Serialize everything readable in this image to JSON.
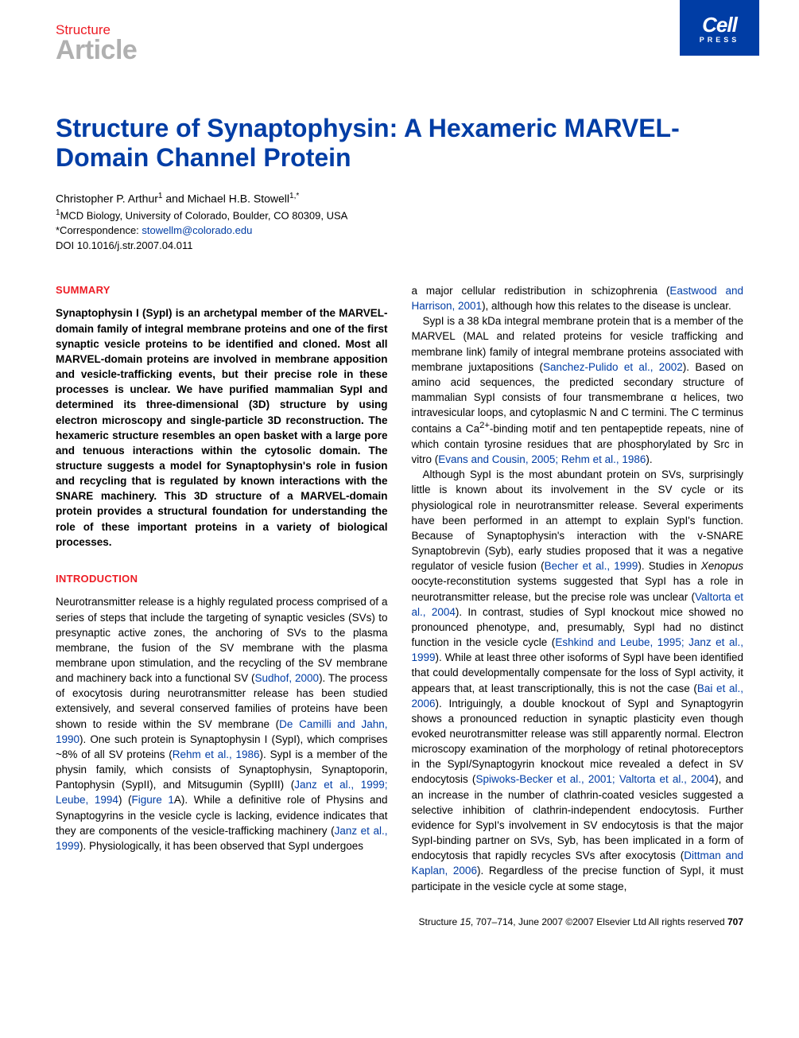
{
  "brand": {
    "top": "Structure",
    "bottom": "Article"
  },
  "publisher_badge": {
    "main": "Cell",
    "sub": "PRESS"
  },
  "title": "Structure of Synaptophysin: A Hexameric MARVEL-Domain Channel Protein",
  "authors_line": "Christopher P. Arthur",
  "authors_sup1": "1",
  "authors_line2": " and Michael H.B. Stowell",
  "authors_sup2": "1,*",
  "affiliation": "MCD Biology, University of Colorado, Boulder, CO 80309, USA",
  "affiliation_sup": "1",
  "correspondence_label": "*Correspondence: ",
  "correspondence_email": "stowellm@colorado.edu",
  "doi": "DOI 10.1016/j.str.2007.04.011",
  "sections": {
    "summary_head": "SUMMARY",
    "summary_text": "Synaptophysin I (SypI) is an archetypal member of the MARVEL-domain family of integral membrane proteins and one of the first synaptic vesicle proteins to be identified and cloned. Most all MARVEL-domain proteins are involved in membrane apposition and vesicle-trafficking events, but their precise role in these processes is unclear. We have purified mammalian SypI and determined its three-dimensional (3D) structure by using electron microscopy and single-particle 3D reconstruction. The hexameric structure resembles an open basket with a large pore and tenuous interactions within the cytosolic domain. The structure suggests a model for Synaptophysin's role in fusion and recycling that is regulated by known interactions with the SNARE machinery. This 3D structure of a MARVEL-domain protein provides a structural foundation for understanding the role of these important proteins in a variety of biological processes.",
    "intro_head": "INTRODUCTION",
    "intro_p1a": "Neurotransmitter release is a highly regulated process comprised of a series of steps that include the targeting of synaptic vesicles (SVs) to presynaptic active zones, the anchoring of SVs to the plasma membrane, the fusion of the SV membrane with the plasma membrane upon stimulation, and the recycling of the SV membrane and machinery back into a functional SV (",
    "ref_sudhof": "Sudhof, 2000",
    "intro_p1b": "). The process of exocytosis during neurotransmitter release has been studied extensively, and several conserved families of proteins have been shown to reside within the SV membrane (",
    "ref_decamilli": "De Camilli and Jahn, 1990",
    "intro_p1c": "). One such protein is Synaptophysin I (SypI), which comprises ~8% of all SV proteins (",
    "ref_rehm": "Rehm et al., 1986",
    "intro_p1d": "). SypI is a member of the physin family, which consists of Synaptophysin, Synaptoporin, Pantophysin (SypII), and Mitsugumin (SypIII) (",
    "ref_janz_leube": "Janz et al., 1999; Leube, 1994",
    "intro_p1e": ") (",
    "ref_fig1a": "Figure 1",
    "intro_p1f": "A). While a definitive role of Physins and Synaptogyrins in the vesicle cycle is lacking, evidence indicates that they are components of the vesicle-trafficking machinery (",
    "ref_janz2": "Janz et al., 1999",
    "intro_p1g": "). Physiologically, it has been observed that SypI undergoes",
    "col2_p1a": "a major cellular redistribution in schizophrenia (",
    "ref_eastwood": "Eastwood and Harrison, 2001",
    "col2_p1b": "), although how this relates to the disease is unclear.",
    "col2_p2a": "SypI is a 38 kDa integral membrane protein that is a member of the MARVEL (MAL and related proteins for vesicle trafficking and membrane link) family of integral membrane proteins associated with membrane juxtapositions (",
    "ref_sanchez": "Sanchez-Pulido et al., 2002",
    "col2_p2b": "). Based on amino acid sequences, the predicted secondary structure of mammalian SypI consists of four transmembrane α helices, two intravesicular loops, and cytoplasmic N and C termini. The C terminus contains a Ca",
    "col2_p2_sup": "2+",
    "col2_p2c": "-binding motif and ten pentapeptide repeats, nine of which contain tyrosine residues that are phosphorylated by Src in vitro (",
    "ref_evans": "Evans and Cousin, 2005; Rehm et al., 1986",
    "col2_p2d": ").",
    "col2_p3a": "Although SypI is the most abundant protein on SVs, surprisingly little is known about its involvement in the SV cycle or its physiological role in neurotransmitter release. Several experiments have been performed in an attempt to explain SypI's function. Because of Synaptophysin's interaction with the v-SNARE Synaptobrevin (Syb), early studies proposed that it was a negative regulator of vesicle fusion (",
    "ref_becher": "Becher et al., 1999",
    "col2_p3b": "). Studies in ",
    "xenopus": "Xenopus",
    "col2_p3c": " oocyte-reconstitution systems suggested that SypI has a role in neurotransmitter release, but the precise role was unclear (",
    "ref_valtorta": "Valtorta et al., 2004",
    "col2_p3d": "). In contrast, studies of SypI knockout mice showed no pronounced phenotype, and, presumably, SypI had no distinct function in the vesicle cycle (",
    "ref_eshkind": "Eshkind and Leube, 1995; Janz et al., 1999",
    "col2_p3e": "). While at least three other isoforms of SypI have been identified that could developmentally compensate for the loss of SypI activity, it appears that, at least transcriptionally, this is not the case (",
    "ref_bai": "Bai et al., 2006",
    "col2_p3f": "). Intriguingly, a double knockout of SypI and Synaptogyrin shows a pronounced reduction in synaptic plasticity even though evoked neurotransmitter release was still apparently normal. Electron microscopy examination of the morphology of retinal photoreceptors in the SypI/Synaptogyrin knockout mice revealed a defect in SV endocytosis (",
    "ref_spiwoks": "Spiwoks-Becker et al., 2001; Valtorta et al., 2004",
    "col2_p3g": "), and an increase in the number of clathrin-coated vesicles suggested a selective inhibition of clathrin-independent endocytosis. Further evidence for SypI's involvement in SV endocytosis is that the major SypI-binding partner on SVs, Syb, has been implicated in a form of endocytosis that rapidly recycles SVs after exocytosis (",
    "ref_dittman": "Dittman and Kaplan, 2006",
    "col2_p3h": "). Regardless of the precise function of SypI, it must participate in the vesicle cycle at some stage,"
  },
  "footer": {
    "journal": "Structure ",
    "vol": "15",
    "pages": ", 707–714, June 2007 ©2007 Elsevier Ltd All rights reserved ",
    "pagenum": "707"
  },
  "colors": {
    "red": "#ed1c24",
    "blue": "#003da5",
    "gray": "#b0b0b0"
  }
}
